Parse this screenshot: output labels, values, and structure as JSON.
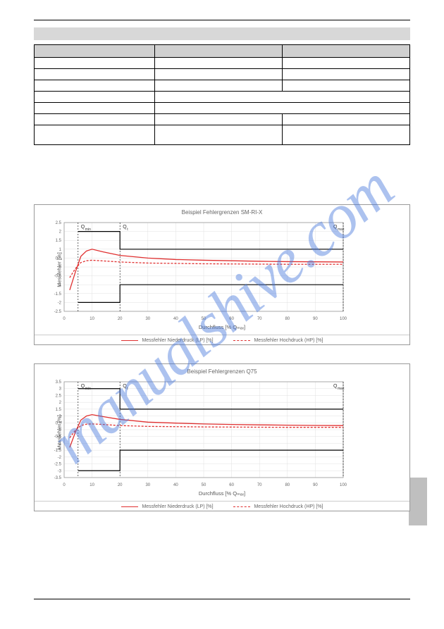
{
  "watermark": "manualshive.com",
  "table": {
    "headers": [
      "",
      "",
      ""
    ],
    "rows": [
      [
        "",
        "",
        ""
      ],
      [
        "",
        "",
        ""
      ],
      [
        "",
        "",
        ""
      ],
      [
        "",
        {
          "span2": ""
        }
      ],
      [
        "",
        {
          "span2": ""
        }
      ],
      [
        "",
        "",
        ""
      ],
      [
        "",
        "",
        ""
      ]
    ]
  },
  "chart1": {
    "type": "line",
    "title": "Beispiel Fehlergrenzen SM-RI-X",
    "xlabel": "Durchfluss [% Qₘₐₓ]",
    "ylabel": "Messfehler [%]",
    "xlim": [
      0,
      100
    ],
    "xtick_step": 10,
    "ylim": [
      -2.5,
      2.5
    ],
    "ytick_step": 0.5,
    "q_min_x": 5,
    "q_t_x": 20,
    "q_max_x": 100,
    "upper_limit": {
      "low": 2.0,
      "high": 1.0
    },
    "lower_limit": {
      "low": -2.0,
      "high": -1.0
    },
    "series_lp": {
      "label": "Messfehler Niederdruck (LP) [%]",
      "color": "#e03030",
      "style": "solid",
      "points": [
        [
          2,
          -1.3
        ],
        [
          4,
          -0.3
        ],
        [
          6,
          0.6
        ],
        [
          8,
          0.9
        ],
        [
          10,
          1.0
        ],
        [
          14,
          0.85
        ],
        [
          20,
          0.65
        ],
        [
          30,
          0.5
        ],
        [
          40,
          0.42
        ],
        [
          50,
          0.38
        ],
        [
          60,
          0.35
        ],
        [
          70,
          0.32
        ],
        [
          80,
          0.3
        ],
        [
          90,
          0.29
        ],
        [
          100,
          0.28
        ]
      ]
    },
    "series_hp": {
      "label": "Messfehler Hochdruck (HP) [%]",
      "color": "#e03030",
      "style": "dashed",
      "points": [
        [
          2,
          -0.6
        ],
        [
          4,
          -0.1
        ],
        [
          6,
          0.25
        ],
        [
          8,
          0.35
        ],
        [
          10,
          0.38
        ],
        [
          14,
          0.34
        ],
        [
          20,
          0.28
        ],
        [
          30,
          0.22
        ],
        [
          40,
          0.2
        ],
        [
          50,
          0.18
        ],
        [
          60,
          0.17
        ],
        [
          70,
          0.16
        ],
        [
          80,
          0.15
        ],
        [
          90,
          0.15
        ],
        [
          100,
          0.15
        ]
      ]
    },
    "grid_color": "#e0e0e0",
    "background_color": "#ffffff"
  },
  "chart2": {
    "type": "line",
    "title": "Beispiel Fehlergrenzen Q75",
    "xlabel": "Durchfluss [% Qₘₐₓ]",
    "ylabel": "Messfehler [%]",
    "xlim": [
      0,
      100
    ],
    "xtick_step": 10,
    "ylim": [
      -3.5,
      3.5
    ],
    "ytick_step": 0.5,
    "q_min_x": 5,
    "q_t_x": 20,
    "q_max_x": 100,
    "upper_limit": {
      "low": 3.0,
      "high": 1.5
    },
    "lower_limit": {
      "low": -3.0,
      "high": -1.5
    },
    "series_lp": {
      "label": "Messfehler Niederdruck (LP) [%]",
      "color": "#e03030",
      "style": "solid",
      "points": [
        [
          2,
          -1.3
        ],
        [
          4,
          -0.2
        ],
        [
          6,
          0.7
        ],
        [
          8,
          1.0
        ],
        [
          10,
          1.1
        ],
        [
          14,
          0.95
        ],
        [
          20,
          0.75
        ],
        [
          30,
          0.55
        ],
        [
          40,
          0.48
        ],
        [
          50,
          0.42
        ],
        [
          60,
          0.38
        ],
        [
          70,
          0.35
        ],
        [
          80,
          0.33
        ],
        [
          90,
          0.31
        ],
        [
          100,
          0.3
        ]
      ]
    },
    "series_hp": {
      "label": "Messfehler Hochdruck (HP) [%]",
      "color": "#e03030",
      "style": "dashed",
      "points": [
        [
          2,
          -0.6
        ],
        [
          4,
          -0.05
        ],
        [
          6,
          0.3
        ],
        [
          8,
          0.4
        ],
        [
          10,
          0.42
        ],
        [
          14,
          0.38
        ],
        [
          20,
          0.3
        ],
        [
          30,
          0.24
        ],
        [
          40,
          0.22
        ],
        [
          50,
          0.2
        ],
        [
          60,
          0.19
        ],
        [
          70,
          0.18
        ],
        [
          80,
          0.17
        ],
        [
          90,
          0.17
        ],
        [
          100,
          0.17
        ]
      ]
    },
    "grid_color": "#e0e0e0",
    "background_color": "#ffffff"
  },
  "page_number": ""
}
